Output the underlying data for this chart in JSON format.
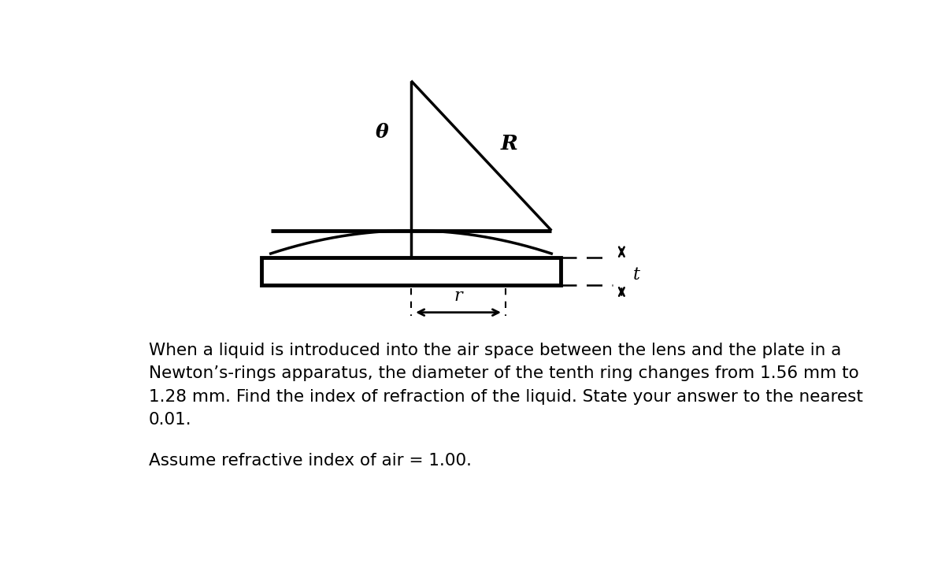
{
  "bg_color": "#ffffff",
  "line_color": "#000000",
  "text_color": "#000000",
  "problem_text_line1": "When a liquid is introduced into the air space between the lens and the plate in a",
  "problem_text_line2": "Newton’s-rings apparatus, the diameter of the tenth ring changes from 1.56 mm to",
  "problem_text_line3": "1.28 mm. Find the index of refraction of the liquid. State your answer to the nearest",
  "problem_text_line4": "0.01.",
  "assume_text": "Assume refractive index of air = 1.00.",
  "label_theta": "θ",
  "label_R": "R",
  "label_t": "t",
  "label_r": "r",
  "figsize": [
    12.0,
    7.39
  ],
  "dpi": 100
}
